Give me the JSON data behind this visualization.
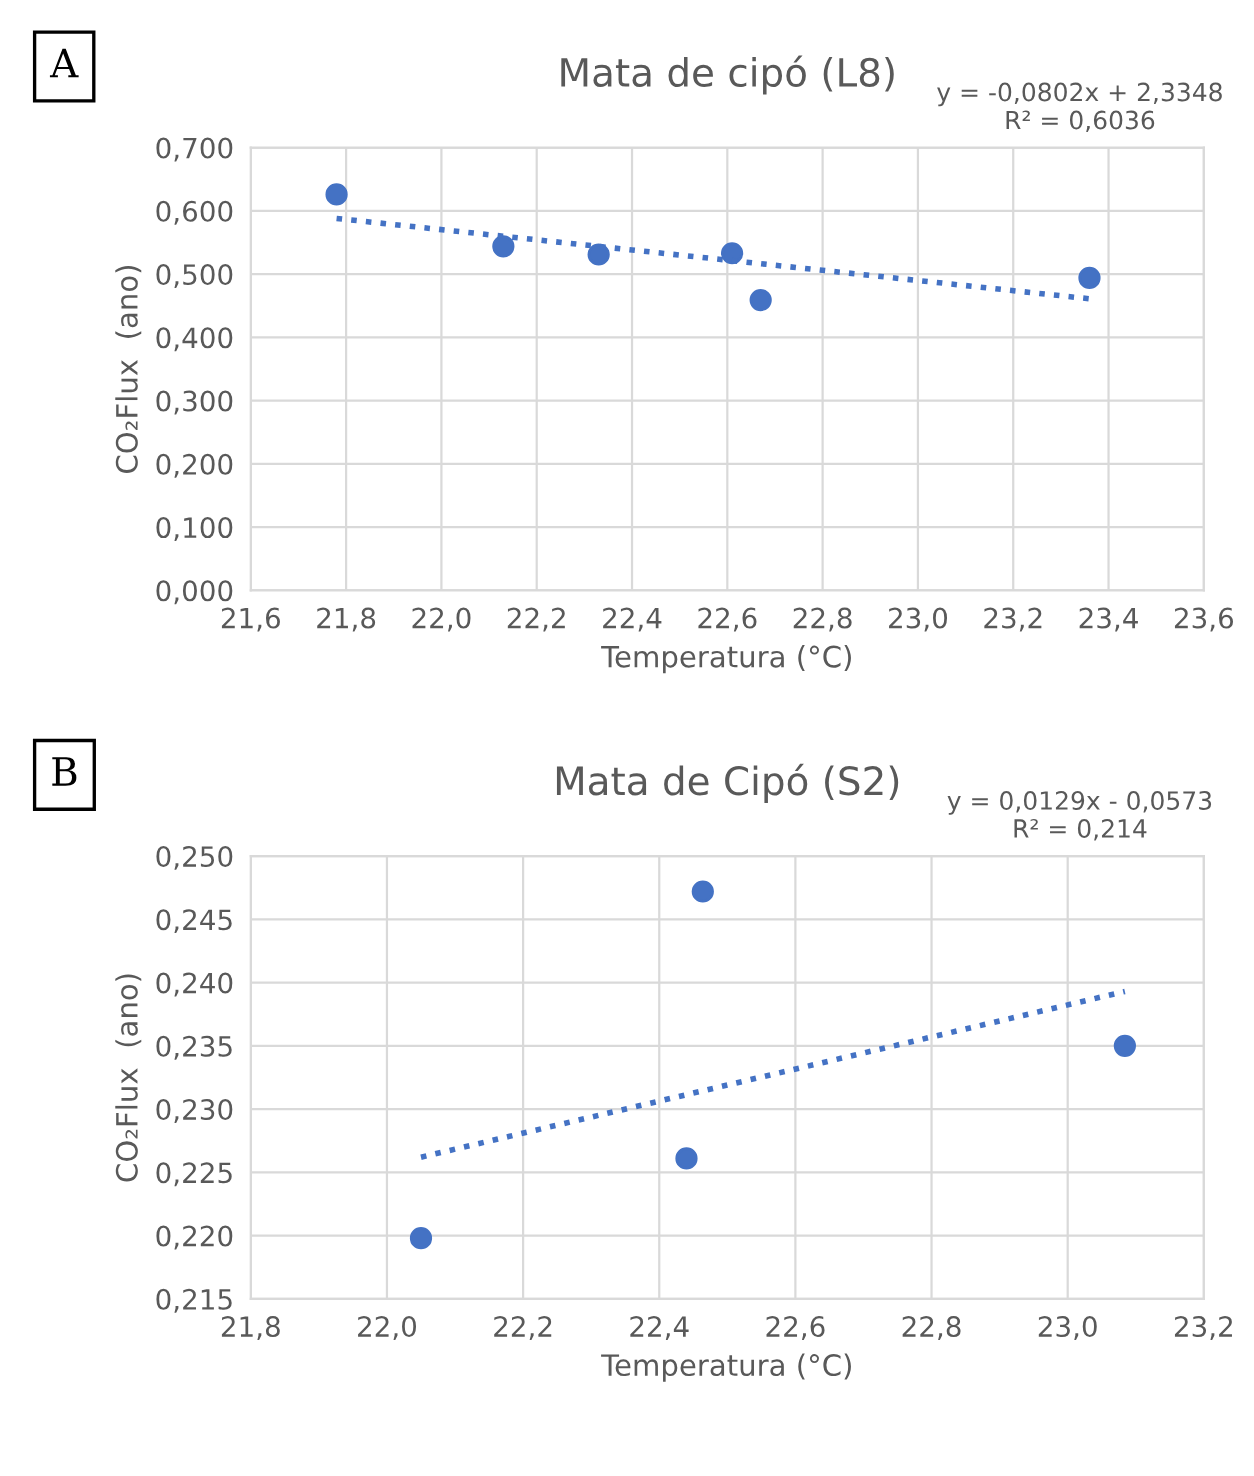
{
  "chart_data": [
    {
      "type": "scatter",
      "title": "Mata de cipó (L8)",
      "xlabel": "Temperatura (°C)",
      "ylabel": "CO₂Flux  (ano)",
      "annotations": [
        "A",
        "y = -0,0802x + 2,3348\nR² = 0,6036"
      ],
      "series": [
        {
          "color": "#4472c4",
          "marker": "circle",
          "x": [
            21.78,
            22.13,
            22.33,
            22.61,
            22.67,
            23.36
          ],
          "values": [
            0.626,
            0.544,
            0.531,
            0.533,
            0.459,
            0.494
          ]
        },
        {
          "type": "line",
          "color": "#4472c4",
          "line_style": "dotted",
          "marker": "none",
          "x": [
            21.78,
            23.36
          ],
          "values": [
            0.588,
            0.461
          ]
        }
      ],
      "xlim": [
        21.6,
        23.6
      ],
      "xticks": [
        {
          "value": 21.6,
          "label": "21,6"
        },
        {
          "value": 21.8,
          "label": "21,8"
        },
        {
          "value": 22.0,
          "label": "22,0"
        },
        {
          "value": 22.2,
          "label": "22,2"
        },
        {
          "value": 22.4,
          "label": "22,4"
        },
        {
          "value": 22.6,
          "label": "22,6"
        },
        {
          "value": 22.8,
          "label": "22,8"
        },
        {
          "value": 23.0,
          "label": "23,0"
        },
        {
          "value": 23.2,
          "label": "23,2"
        },
        {
          "value": 23.4,
          "label": "23,4"
        },
        {
          "value": 23.6,
          "label": "23,6"
        }
      ],
      "ylim": [
        0,
        0.7
      ],
      "yticks": [
        {
          "value": 0,
          "label": "0,000"
        },
        {
          "value": 0.1,
          "label": "0,100"
        },
        {
          "value": 0.2,
          "label": "0,200"
        },
        {
          "value": 0.3,
          "label": "0,300"
        },
        {
          "value": 0.4,
          "label": "0,400"
        },
        {
          "value": 0.5,
          "label": "0,500"
        },
        {
          "value": 0.6,
          "label": "0,600"
        },
        {
          "value": 0.7,
          "label": "0,700"
        }
      ],
      "grid": true,
      "legend": false
    },
    {
      "type": "scatter",
      "title": "Mata de Cipó (S2)",
      "xlabel": "Temperatura (°C)",
      "ylabel": "CO₂Flux  (ano)",
      "annotations": [
        "B",
        "y = 0,0129x - 0,0573\nR² = 0,214"
      ],
      "series": [
        {
          "color": "#4472c4",
          "marker": "circle",
          "x": [
            22.05,
            22.464,
            22.44,
            23.084
          ],
          "values": [
            0.2198,
            0.2472,
            0.2261,
            0.235
          ]
        },
        {
          "type": "line",
          "color": "#4472c4",
          "line_style": "dotted",
          "marker": "none",
          "x": [
            22.05,
            23.084
          ],
          "values": [
            0.2262,
            0.2393
          ]
        }
      ],
      "xlim": [
        21.8,
        23.2
      ],
      "xticks": [
        {
          "value": 21.8,
          "label": "21,8"
        },
        {
          "value": 22.0,
          "label": "22,0"
        },
        {
          "value": 22.2,
          "label": "22,2"
        },
        {
          "value": 22.4,
          "label": "22,4"
        },
        {
          "value": 22.6,
          "label": "22,6"
        },
        {
          "value": 22.8,
          "label": "22,8"
        },
        {
          "value": 23.0,
          "label": "23,0"
        },
        {
          "value": 23.2,
          "label": "23,2"
        }
      ],
      "ylim": [
        0.215,
        0.25
      ],
      "yticks": [
        {
          "value": 0.215,
          "label": "0,215"
        },
        {
          "value": 0.22,
          "label": "0,220"
        },
        {
          "value": 0.225,
          "label": "0,225"
        },
        {
          "value": 0.23,
          "label": "0,230"
        },
        {
          "value": 0.235,
          "label": "0,235"
        },
        {
          "value": 0.24,
          "label": "0,240"
        },
        {
          "value": 0.245,
          "label": "0,245"
        },
        {
          "value": 0.25,
          "label": "0,250"
        }
      ],
      "grid": true,
      "legend": false
    }
  ]
}
